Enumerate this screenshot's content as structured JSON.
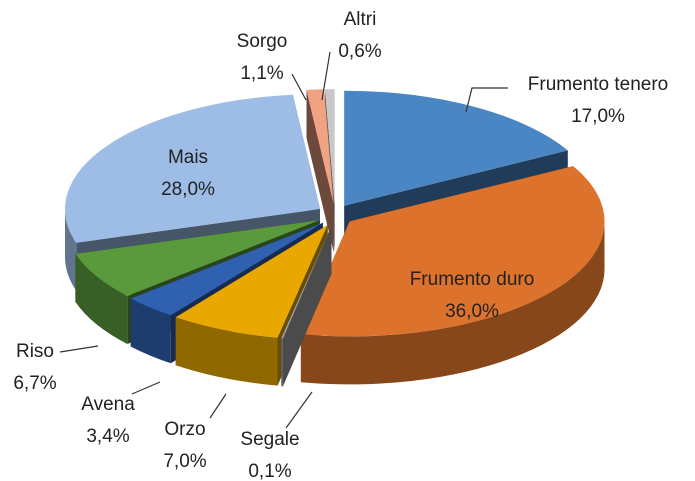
{
  "chart_data": {
    "type": "pie3d",
    "categories": [
      "Frumento tenero",
      "Frumento duro",
      "Segale",
      "Orzo",
      "Avena",
      "Riso",
      "Mais",
      "Sorgo",
      "Altri"
    ],
    "values": [
      17.0,
      36.0,
      0.1,
      7.0,
      3.4,
      6.7,
      28.0,
      1.1,
      0.6
    ],
    "value_labels": [
      "17,0%",
      "36,0%",
      "0,1%",
      "7,0%",
      "3,4%",
      "6,7%",
      "28,0%",
      "1,1%",
      "0,6%"
    ],
    "colors": [
      "#4a86c3",
      "#dc722c",
      "#a6a6a6",
      "#e8a800",
      "#3060b0",
      "#5a9a3c",
      "#9dbde6",
      "#f0a282",
      "#c8c8c8"
    ]
  }
}
